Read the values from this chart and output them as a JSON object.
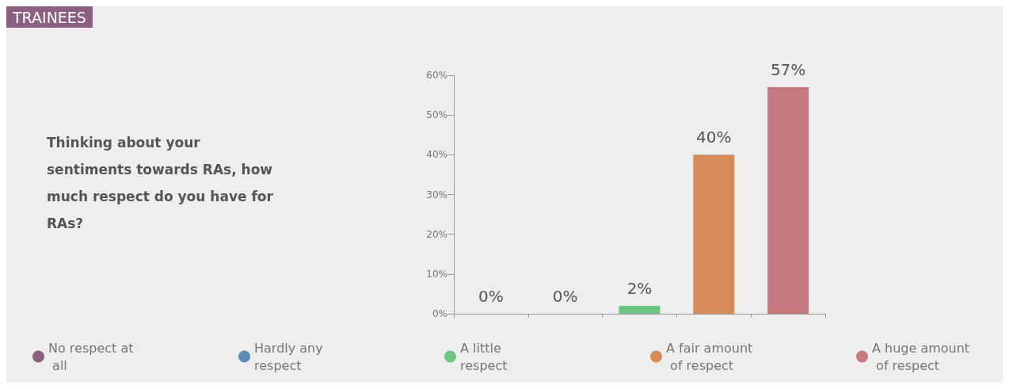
{
  "chart_data": {
    "type": "bar",
    "title": "TRAINEES",
    "subtitle": "Thinking about your sentiments towards RAs, how much respect do you have for RAs?",
    "categories": [
      null,
      null,
      null,
      null,
      null
    ],
    "stacked": true,
    "series": [
      {
        "name": "No respect at all",
        "color": "#8a5f80",
        "values": [
          0,
          null,
          null,
          null,
          null
        ],
        "value_labels": [
          "0%",
          null,
          null,
          null,
          null
        ]
      },
      {
        "name": "Hardly any respect",
        "color": "#5b8db8",
        "values": [
          null,
          0,
          null,
          null,
          null
        ],
        "value_labels": [
          null,
          "0%",
          null,
          null,
          null
        ]
      },
      {
        "name": "A little respect",
        "color": "#6cc785",
        "values": [
          null,
          null,
          2,
          null,
          null
        ],
        "value_labels": [
          null,
          null,
          "2%",
          null,
          null
        ]
      },
      {
        "name": "A fair amount of respect",
        "color": "#d68b58",
        "values": [
          null,
          null,
          null,
          40,
          null
        ],
        "value_labels": [
          null,
          null,
          null,
          "40%",
          null
        ]
      },
      {
        "name": "A huge amount of respect",
        "color": "#c77980",
        "values": [
          null,
          null,
          null,
          null,
          57
        ],
        "value_labels": [
          null,
          null,
          null,
          null,
          "57%"
        ]
      }
    ],
    "ylim": [
      0,
      60
    ],
    "yticks": [
      {
        "value": 0,
        "label": "0%"
      },
      {
        "value": 10,
        "label": "10%"
      },
      {
        "value": 20,
        "label": "20%"
      },
      {
        "value": 30,
        "label": "30%"
      },
      {
        "value": 40,
        "label": "40%"
      },
      {
        "value": 50,
        "label": "50%"
      },
      {
        "value": 60,
        "label": "60%"
      }
    ],
    "grid": false,
    "legend": "bottom",
    "tick_labels": "y"
  }
}
